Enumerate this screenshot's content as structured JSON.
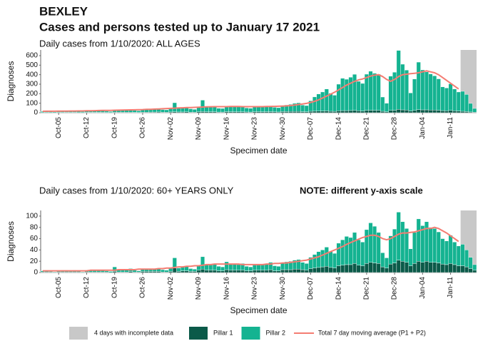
{
  "header": {
    "title": "BEXLEY",
    "subtitle": "Cases and persons tested up to January 17 2021"
  },
  "legend": {
    "incomplete_label": "4 days with incomplete data",
    "incomplete_color": "#c8c8c8"
  },
  "chart_data": [
    {
      "type": "bar",
      "stacked": true,
      "subtitle": "Daily cases from 1/10/2020: ALL AGES",
      "x_label": "Specimen date",
      "y_label": "Diagnoses",
      "shade_last": 4,
      "categories": [
        null,
        null,
        null,
        null,
        "Oct-05",
        null,
        null,
        null,
        null,
        null,
        null,
        "Oct-12",
        null,
        null,
        null,
        null,
        null,
        null,
        "Oct-19",
        null,
        null,
        null,
        null,
        null,
        null,
        "Oct-26",
        null,
        null,
        null,
        null,
        null,
        null,
        "Nov-02",
        null,
        null,
        null,
        null,
        null,
        null,
        "Nov-09",
        null,
        null,
        null,
        null,
        null,
        null,
        "Nov-16",
        null,
        null,
        null,
        null,
        null,
        null,
        "Nov-23",
        null,
        null,
        null,
        null,
        null,
        null,
        "Nov-30",
        null,
        null,
        null,
        null,
        null,
        null,
        "Dec-07",
        null,
        null,
        null,
        null,
        null,
        null,
        "Dec-14",
        null,
        null,
        null,
        null,
        null,
        null,
        "Dec-21",
        null,
        null,
        null,
        null,
        null,
        null,
        "Dec-28",
        null,
        null,
        null,
        null,
        null,
        null,
        "Jan-04",
        null,
        null,
        null,
        null,
        null,
        null,
        "Jan-11",
        null,
        null,
        null,
        null,
        null,
        null
      ],
      "ylim": [
        0,
        660
      ],
      "yticks": [
        0,
        100,
        200,
        300,
        400,
        500,
        600
      ],
      "series": [
        {
          "name": "Pillar 1",
          "color": "#0b5a49",
          "values": [
            2,
            3,
            2,
            1,
            3,
            3,
            4,
            3,
            4,
            2,
            2,
            4,
            4,
            4,
            4,
            5,
            3,
            2,
            5,
            5,
            5,
            5,
            6,
            4,
            3,
            6,
            6,
            7,
            7,
            8,
            5,
            5,
            8,
            10,
            8,
            8,
            9,
            6,
            6,
            9,
            12,
            10,
            10,
            10,
            7,
            7,
            11,
            10,
            10,
            10,
            10,
            8,
            7,
            10,
            11,
            10,
            11,
            11,
            9,
            8,
            12,
            12,
            13,
            13,
            14,
            11,
            10,
            15,
            16,
            17,
            18,
            19,
            15,
            14,
            20,
            22,
            22,
            23,
            24,
            20,
            18,
            25,
            26,
            25,
            25,
            15,
            10,
            24,
            26,
            35,
            30,
            28,
            18,
            24,
            32,
            30,
            30,
            28,
            28,
            26,
            22,
            20,
            24,
            20,
            18,
            15,
            12,
            8,
            5
          ]
        },
        {
          "name": "Pillar 2",
          "color": "#14b391",
          "values": [
            12,
            15,
            10,
            8,
            14,
            16,
            18,
            15,
            18,
            12,
            10,
            17,
            20,
            19,
            20,
            22,
            15,
            12,
            22,
            25,
            24,
            26,
            28,
            20,
            18,
            30,
            32,
            35,
            34,
            38,
            28,
            25,
            40,
            95,
            45,
            42,
            48,
            35,
            30,
            50,
            120,
            55,
            52,
            55,
            40,
            38,
            60,
            58,
            56,
            55,
            58,
            42,
            40,
            55,
            60,
            58,
            60,
            62,
            48,
            45,
            65,
            70,
            75,
            85,
            90,
            70,
            65,
            110,
            150,
            180,
            200,
            230,
            190,
            170,
            280,
            340,
            330,
            350,
            380,
            310,
            290,
            380,
            410,
            390,
            380,
            150,
            90,
            360,
            400,
            620,
            480,
            420,
            190,
            330,
            500,
            420,
            400,
            380,
            360,
            330,
            250,
            240,
            280,
            230,
            200,
            210,
            180,
            90,
            40
          ]
        },
        {
          "name": "Total 7 day moving average (P1 + P2)",
          "type": "line",
          "color": "#f47c72",
          "values": [
            15,
            16,
            16,
            16,
            17,
            17,
            17,
            18,
            18,
            19,
            19,
            20,
            21,
            22,
            23,
            24,
            24,
            25,
            26,
            27,
            28,
            29,
            30,
            31,
            32,
            33,
            35,
            36,
            38,
            40,
            42,
            44,
            46,
            48,
            50,
            52,
            54,
            55,
            56,
            58,
            60,
            62,
            63,
            64,
            64,
            64,
            64,
            65,
            65,
            65,
            64,
            64,
            64,
            64,
            64,
            64,
            65,
            66,
            67,
            68,
            70,
            72,
            75,
            80,
            86,
            92,
            98,
            108,
            120,
            135,
            155,
            175,
            195,
            215,
            240,
            265,
            290,
            310,
            330,
            345,
            355,
            370,
            385,
            395,
            400,
            380,
            350,
            330,
            350,
            380,
            400,
            405,
            410,
            415,
            420,
            430,
            440,
            430,
            420,
            400,
            370,
            340,
            310,
            280,
            250,
            null,
            null,
            null,
            null
          ]
        }
      ]
    },
    {
      "type": "bar",
      "stacked": true,
      "subtitle": "Daily cases from 1/10/2020: 60+ YEARS ONLY",
      "note": "NOTE: different y-axis scale",
      "x_label": "Specimen date",
      "y_label": "Diagnoses",
      "shade_last": 4,
      "categories": [
        null,
        null,
        null,
        null,
        "Oct-05",
        null,
        null,
        null,
        null,
        null,
        null,
        "Oct-12",
        null,
        null,
        null,
        null,
        null,
        null,
        "Oct-19",
        null,
        null,
        null,
        null,
        null,
        null,
        "Oct-26",
        null,
        null,
        null,
        null,
        null,
        null,
        "Nov-02",
        null,
        null,
        null,
        null,
        null,
        null,
        "Nov-09",
        null,
        null,
        null,
        null,
        null,
        null,
        "Nov-16",
        null,
        null,
        null,
        null,
        null,
        null,
        "Nov-23",
        null,
        null,
        null,
        null,
        null,
        null,
        "Nov-30",
        null,
        null,
        null,
        null,
        null,
        null,
        "Dec-07",
        null,
        null,
        null,
        null,
        null,
        null,
        "Dec-14",
        null,
        null,
        null,
        null,
        null,
        null,
        "Dec-21",
        null,
        null,
        null,
        null,
        null,
        null,
        "Dec-28",
        null,
        null,
        null,
        null,
        null,
        null,
        "Jan-04",
        null,
        null,
        null,
        null,
        null,
        null,
        "Jan-11",
        null,
        null,
        null,
        null,
        null,
        null
      ],
      "ylim": [
        0,
        110
      ],
      "yticks": [
        0,
        20,
        40,
        60,
        80,
        100
      ],
      "series": [
        {
          "color": "#0b5a49",
          "values": [
            1,
            1,
            1,
            0,
            1,
            1,
            1,
            1,
            1,
            1,
            0,
            1,
            1,
            1,
            1,
            1,
            1,
            0,
            2,
            1,
            1,
            1,
            2,
            1,
            1,
            2,
            2,
            2,
            2,
            2,
            1,
            1,
            2,
            8,
            2,
            3,
            3,
            2,
            2,
            4,
            6,
            4,
            4,
            4,
            3,
            3,
            5,
            4,
            4,
            4,
            4,
            3,
            3,
            4,
            4,
            4,
            4,
            5,
            3,
            3,
            5,
            5,
            5,
            6,
            6,
            5,
            4,
            7,
            8,
            9,
            10,
            11,
            9,
            8,
            12,
            13,
            14,
            14,
            16,
            13,
            12,
            16,
            18,
            17,
            16,
            10,
            8,
            15,
            17,
            22,
            20,
            18,
            12,
            16,
            20,
            18,
            20,
            18,
            18,
            17,
            15,
            14,
            16,
            14,
            12,
            12,
            10,
            7,
            4
          ]
        },
        {
          "color": "#14b391",
          "values": [
            2,
            3,
            1,
            1,
            2,
            3,
            3,
            2,
            3,
            2,
            1,
            3,
            3,
            3,
            3,
            4,
            2,
            2,
            8,
            4,
            5,
            4,
            5,
            3,
            2,
            5,
            4,
            5,
            5,
            6,
            4,
            3,
            6,
            18,
            6,
            7,
            8,
            5,
            4,
            9,
            22,
            10,
            10,
            12,
            8,
            7,
            14,
            12,
            11,
            10,
            12,
            8,
            7,
            10,
            11,
            10,
            11,
            13,
            9,
            8,
            12,
            14,
            15,
            16,
            17,
            13,
            12,
            20,
            24,
            28,
            30,
            34,
            28,
            26,
            40,
            45,
            50,
            48,
            55,
            45,
            42,
            60,
            70,
            65,
            55,
            25,
            18,
            50,
            60,
            85,
            70,
            60,
            30,
            55,
            75,
            65,
            70,
            62,
            60,
            55,
            45,
            42,
            50,
            40,
            35,
            38,
            30,
            20,
            10
          ]
        },
        {
          "type": "line",
          "color": "#f47c72",
          "values": [
            3,
            3,
            3,
            3,
            3,
            3,
            3,
            3,
            3,
            3,
            3,
            3,
            4,
            4,
            4,
            4,
            4,
            4,
            4,
            5,
            5,
            5,
            5,
            5,
            6,
            6,
            6,
            6,
            6,
            7,
            7,
            8,
            8,
            9,
            10,
            10,
            11,
            11,
            12,
            12,
            13,
            14,
            14,
            15,
            15,
            15,
            15,
            15,
            15,
            15,
            14,
            14,
            14,
            14,
            14,
            14,
            15,
            15,
            16,
            16,
            17,
            17,
            18,
            19,
            20,
            21,
            22,
            24,
            26,
            28,
            31,
            34,
            37,
            40,
            43,
            46,
            50,
            53,
            56,
            59,
            62,
            64,
            66,
            66,
            64,
            60,
            58,
            60,
            64,
            68,
            70,
            70,
            71,
            72,
            74,
            76,
            78,
            78,
            80,
            78,
            74,
            70,
            65,
            60,
            55,
            null,
            null,
            null,
            null
          ]
        }
      ]
    }
  ]
}
